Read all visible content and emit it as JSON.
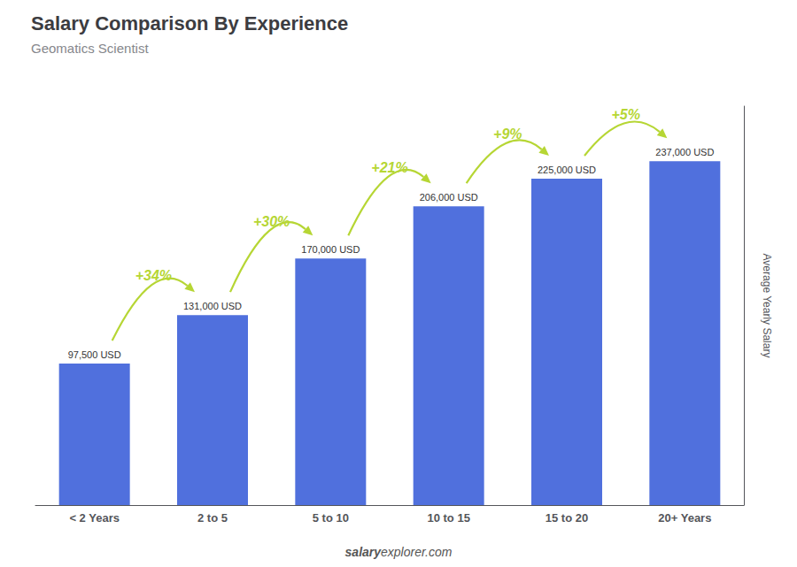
{
  "chart_data": {
    "type": "bar",
    "title": "Salary Comparison By Experience",
    "subtitle": "Geomatics Scientist",
    "ylabel": "Average Yearly Salary",
    "footer": [
      "salary",
      "explorer.com"
    ],
    "categories": [
      "< 2 Years",
      "2 to 5",
      "5 to 10",
      "10 to 15",
      "15 to 20",
      "20+ Years"
    ],
    "values": [
      97500,
      131000,
      170000,
      206000,
      225000,
      237000
    ],
    "value_labels": [
      "97,500 USD",
      "131,000 USD",
      "170,000 USD",
      "206,000 USD",
      "225,000 USD",
      "237,000 USD"
    ],
    "data_labels": true,
    "annotations": [
      "+34%",
      "+30%",
      "+21%",
      "+9%",
      "+5%"
    ],
    "ylim": [
      0,
      275000
    ],
    "yticks": [],
    "tick_labels": "x",
    "grid": false
  }
}
